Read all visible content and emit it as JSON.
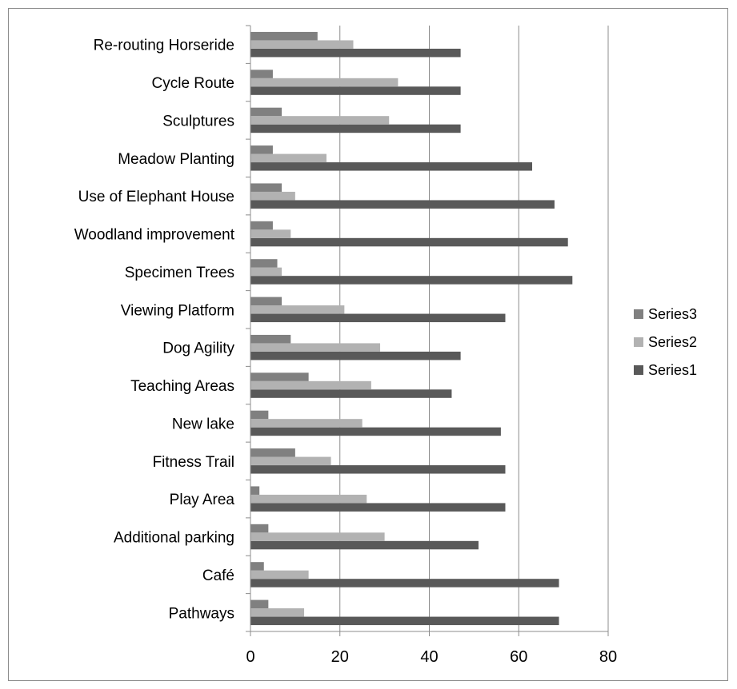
{
  "chart_data": {
    "type": "bar",
    "orientation": "horizontal",
    "categories": [
      "Pathways",
      "Café",
      "Additional parking",
      "Play Area",
      "Fitness Trail",
      "New lake",
      "Teaching Areas",
      "Dog Agility",
      "Viewing Platform",
      "Specimen Trees",
      "Woodland improvement",
      "Use of Elephant House",
      "Meadow Planting",
      "Sculptures",
      "Cycle Route",
      "Re-routing Horseride"
    ],
    "series": [
      {
        "name": "Series1",
        "color": "#595959",
        "values": [
          69,
          69,
          51,
          57,
          57,
          56,
          45,
          47,
          57,
          72,
          71,
          68,
          63,
          47,
          47,
          47
        ]
      },
      {
        "name": "Series2",
        "color": "#b2b2b2",
        "values": [
          12,
          13,
          30,
          26,
          18,
          25,
          27,
          29,
          21,
          7,
          9,
          10,
          17,
          31,
          33,
          23
        ]
      },
      {
        "name": "Series3",
        "color": "#808080",
        "values": [
          4,
          3,
          4,
          2,
          10,
          4,
          13,
          9,
          7,
          6,
          5,
          7,
          5,
          7,
          5,
          15
        ]
      }
    ],
    "xlim": [
      0,
      80
    ],
    "xticks": [
      "0",
      "20",
      "40",
      "60",
      "80"
    ],
    "grid": "vertical",
    "legend_position": "right",
    "legend_order": [
      "Series3",
      "Series2",
      "Series1"
    ]
  }
}
